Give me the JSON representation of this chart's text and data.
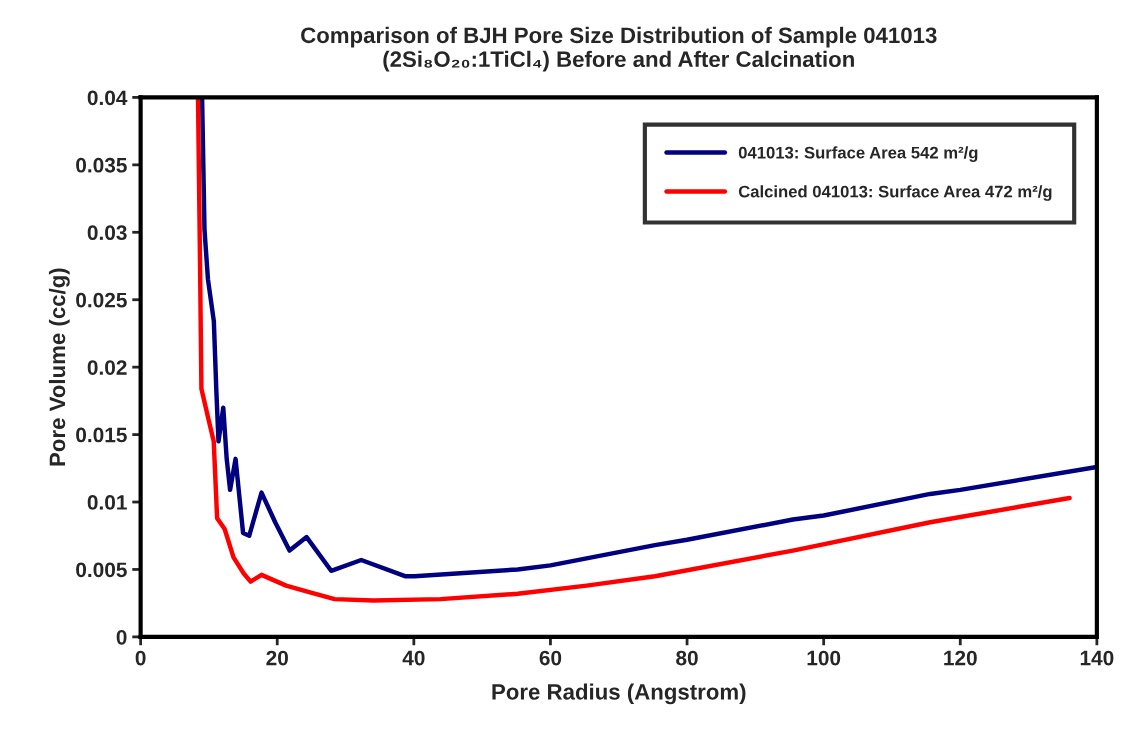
{
  "chart_data": {
    "type": "line",
    "title": "Comparison of BJH Pore Size Distribution of Sample 041013\n(2Si₈O₂₀:1TiCl₄) Before and After Calcination",
    "xlabel": "Pore Radius (Angstrom)",
    "ylabel": "Pore Volume (cc/g)",
    "xlim": [
      0,
      140
    ],
    "xticks": [
      0,
      20,
      40,
      60,
      80,
      100,
      120,
      140
    ],
    "ylim": [
      0,
      0.04
    ],
    "yticks": [
      0,
      0.005,
      0.01,
      0.015,
      0.02,
      0.025,
      0.03,
      0.035,
      0.04
    ],
    "grid": false,
    "legend": "top right",
    "marker": "none",
    "line_style": "solid",
    "series": [
      {
        "name": "041013: Surface Area 542 m²/g",
        "color": "#000080",
        "x": [
          9.0,
          9.35,
          9.86,
          10.72,
          11.09,
          11.4,
          12.1,
          12.6,
          13.1,
          13.9,
          15.0,
          15.9,
          17.7,
          19.7,
          21.8,
          24.3,
          27.9,
          32.3,
          38.7,
          40.1,
          55.2,
          60,
          75.3,
          80,
          95.5,
          100,
          115.6,
          120,
          140
        ],
        "values": [
          0.04,
          0.0302,
          0.0265,
          0.0234,
          0.0182,
          0.0145,
          0.017,
          0.0132,
          0.0109,
          0.0132,
          0.0077,
          0.0075,
          0.0107,
          0.0085,
          0.0064,
          0.0074,
          0.0049,
          0.0057,
          0.0045,
          0.0045,
          0.005,
          0.0053,
          0.0068,
          0.0072,
          0.0087,
          0.009,
          0.0106,
          0.0109,
          0.0126
        ]
      },
      {
        "name": "Calcined 041013: Surface Area 472 m²/g",
        "color": "#ff0000",
        "x": [
          8.4,
          8.7,
          8.9,
          9.95,
          10.7,
          11.2,
          12.3,
          13.6,
          15.1,
          16.1,
          17.7,
          21.3,
          24.8,
          28.4,
          34.1,
          43.9,
          55.2,
          65.3,
          75.3,
          95.5,
          115.6,
          136
        ],
        "values": [
          0.04,
          0.0276,
          0.0184,
          0.0161,
          0.0145,
          0.0088,
          0.008,
          0.0059,
          0.0047,
          0.0041,
          0.0046,
          0.0038,
          0.0033,
          0.0028,
          0.0027,
          0.0028,
          0.0032,
          0.0038,
          0.0045,
          0.0064,
          0.0085,
          0.0103
        ]
      }
    ]
  }
}
